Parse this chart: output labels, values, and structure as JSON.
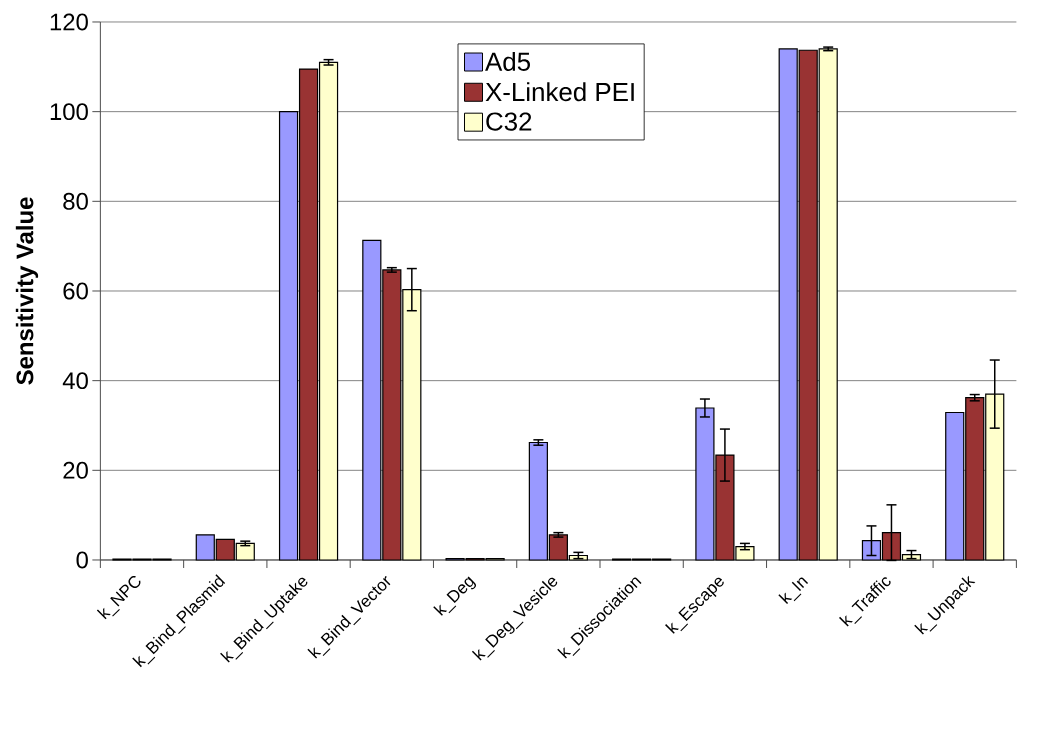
{
  "chart_data": {
    "type": "bar",
    "ylabel": "Sensitivity Value",
    "categories": [
      "k_NPC",
      "k_Bind_Plasmid",
      "k_Bind_Uptake",
      "k_Bind_Vector",
      "k_Deg",
      "k_Deg_Vesicle",
      "k_Dissociation",
      "k_Escape",
      "k_In",
      "k_Traffic",
      "k_Unpack"
    ],
    "series": [
      {
        "name": "Ad5",
        "color": "#9999ff",
        "values": [
          0.2,
          5.6,
          100,
          71.3,
          0.3,
          26.2,
          0.2,
          33.9,
          114,
          4.3,
          32.9
        ],
        "errors": [
          null,
          null,
          null,
          null,
          null,
          0.6,
          null,
          2,
          null,
          3.3,
          null
        ]
      },
      {
        "name": "X-Linked PEI",
        "color": "#993333",
        "values": [
          0.2,
          4.6,
          109.5,
          64.7,
          0.3,
          5.6,
          0.2,
          23.4,
          113.7,
          6.1,
          36.2
        ],
        "errors": [
          null,
          null,
          null,
          0.5,
          null,
          0.5,
          null,
          5.8,
          null,
          6.2,
          0.7
        ]
      },
      {
        "name": "C32",
        "color": "#ffffcc",
        "values": [
          0.2,
          3.7,
          111,
          60.3,
          0.3,
          1,
          0.2,
          3,
          114,
          1.2,
          37
        ],
        "errors": [
          null,
          0.5,
          0.6,
          4.7,
          null,
          0.7,
          null,
          0.7,
          0.4,
          0.9,
          7.6
        ]
      }
    ],
    "ylim": [
      0,
      120
    ],
    "yticks": [
      0,
      20,
      40,
      60,
      80,
      100,
      120
    ],
    "grid": "y",
    "legend": "top"
  }
}
